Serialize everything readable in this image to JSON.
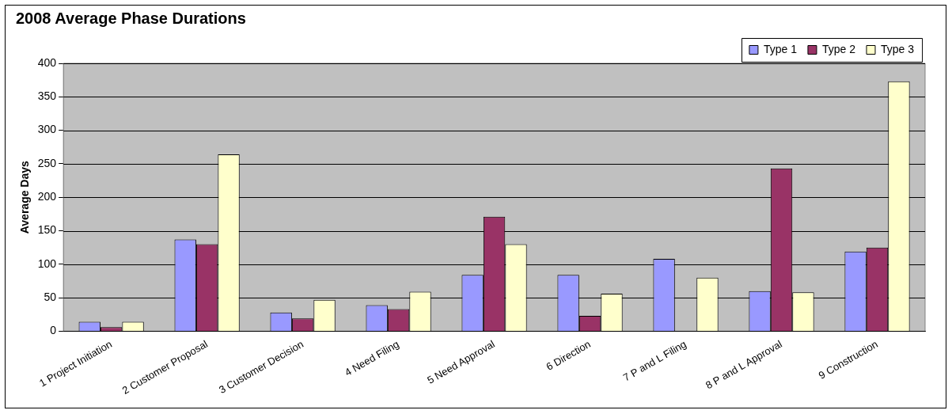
{
  "chart_data": {
    "type": "bar",
    "title": "2008 Average Phase Durations",
    "ylabel": "Average Days",
    "categories": [
      "1 Project Initiation",
      "2 Customer Proposal",
      "3 Customer Decision",
      "4 Need Filing",
      "5 Need Approval",
      "6 Direction",
      "7 P and L Filing",
      "8 P and L Approval",
      "9 Construction"
    ],
    "series": [
      {
        "name": "Type 1",
        "color": "#9999ff",
        "values": [
          14,
          137,
          28,
          39,
          84,
          84,
          108,
          60,
          119
        ]
      },
      {
        "name": "Type 2",
        "color": "#993366",
        "values": [
          6,
          130,
          19,
          33,
          171,
          23,
          null,
          243,
          125
        ]
      },
      {
        "name": "Type 3",
        "color": "#ffffcc",
        "values": [
          14,
          264,
          47,
          59,
          130,
          56,
          80,
          58,
          373
        ]
      }
    ],
    "ylim": [
      0,
      400
    ],
    "yticks": [
      0,
      50,
      100,
      150,
      200,
      250,
      300,
      350,
      400
    ],
    "grid": "y",
    "legend": "top right"
  }
}
